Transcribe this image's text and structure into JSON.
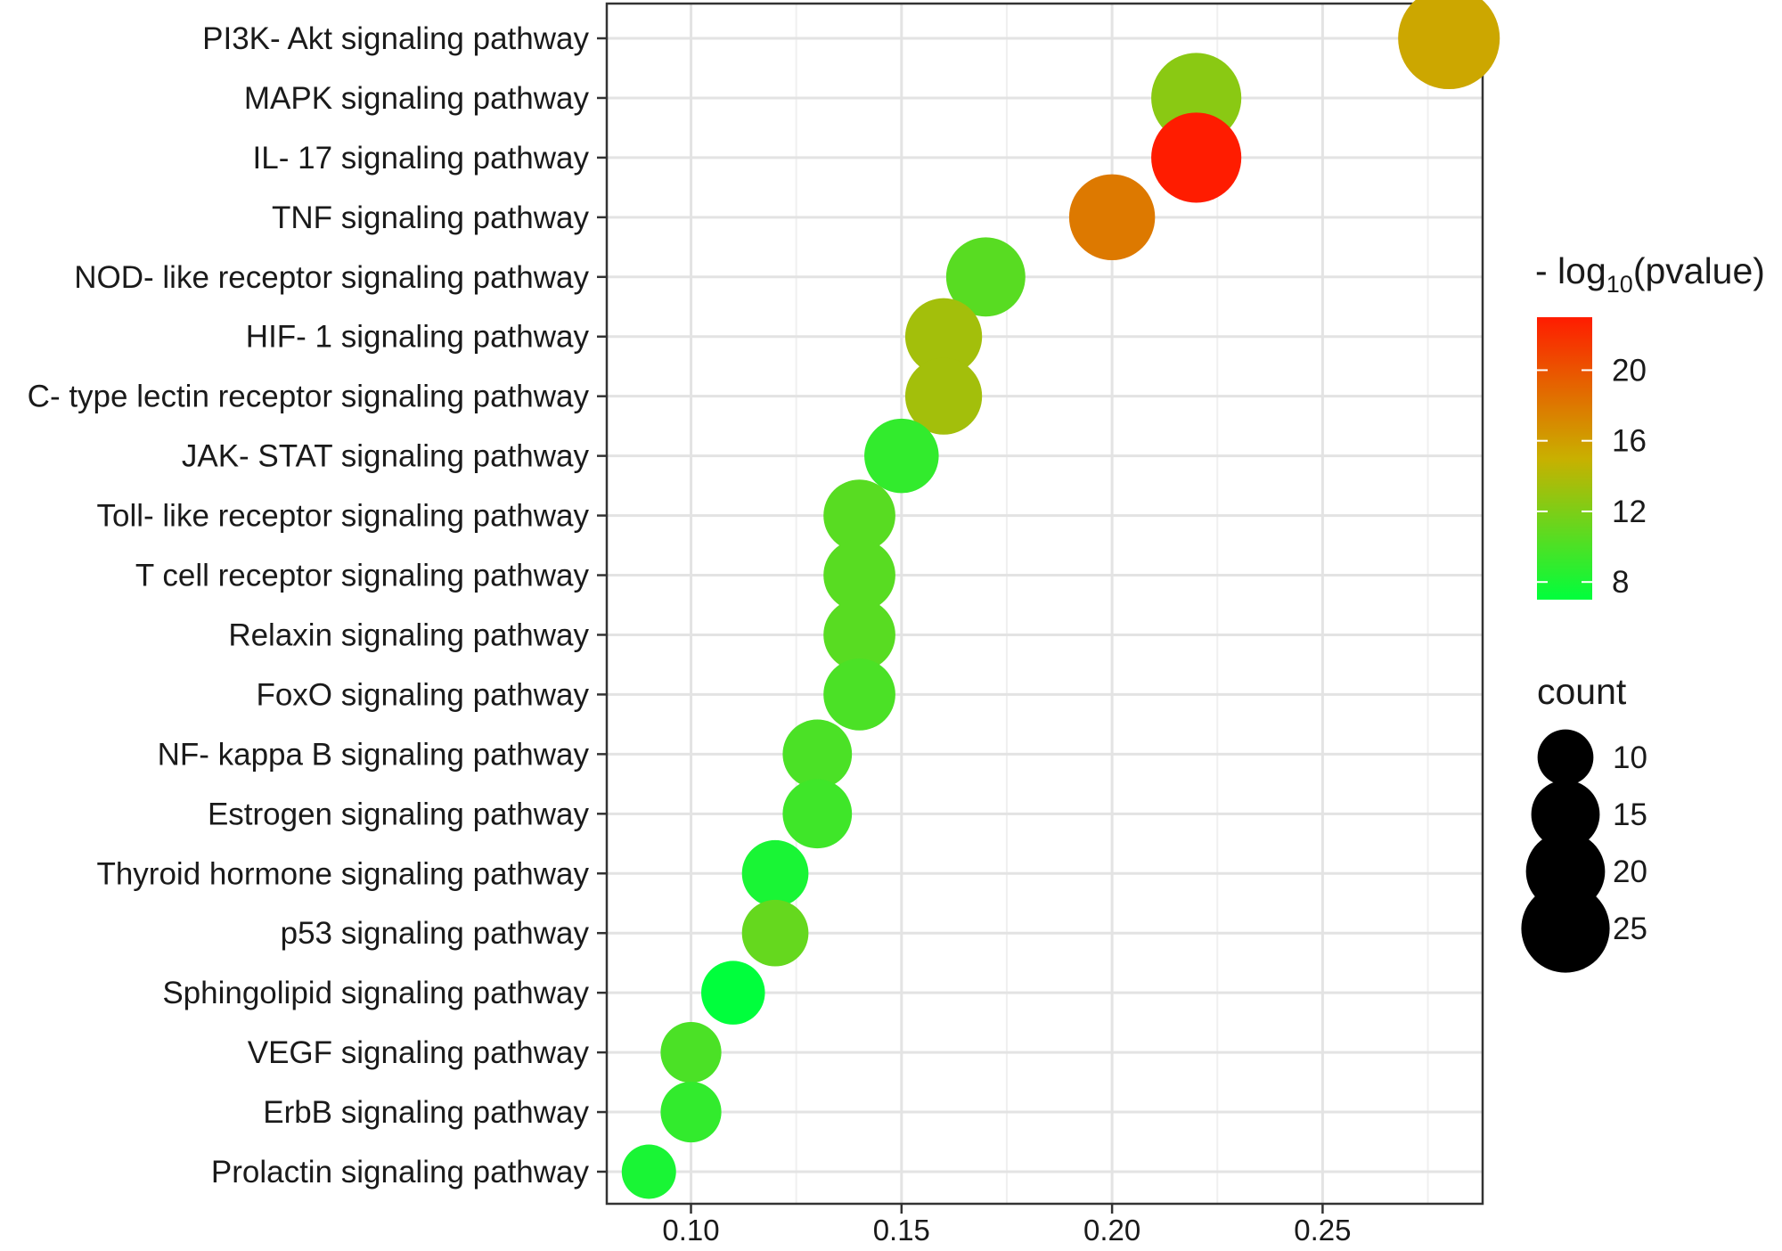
{
  "chart_data": {
    "type": "scatter",
    "title": "",
    "xlabel": "",
    "ylabel": "",
    "xlim": [
      0.08,
      0.288
    ],
    "x_ticks": [
      "0.10",
      "0.15",
      "0.20",
      "0.25"
    ],
    "x_tick_values": [
      0.1,
      0.15,
      0.2,
      0.25
    ],
    "grid": true,
    "legend_position": "right",
    "color_legend": {
      "title_prefix": "- log",
      "title_sub": "10",
      "title_suffix": "(pvalue)",
      "min": 7,
      "max": 23,
      "ticks": [
        "8",
        "12",
        "16",
        "20"
      ],
      "tick_values": [
        8,
        12,
        16,
        20
      ],
      "low_color": "#00ff3c",
      "mid_color": "#c9b000",
      "high_color": "#ff1c00"
    },
    "size_legend": {
      "title": "count",
      "ticks": [
        "10",
        "15",
        "20",
        "25"
      ],
      "tick_values": [
        10,
        15,
        20,
        25
      ]
    },
    "points": [
      {
        "pathway": "PI3K- Akt signaling pathway",
        "gene_ratio": 0.28,
        "count": 28,
        "neg_log10_pvalue": 15.5
      },
      {
        "pathway": "MAPK signaling pathway",
        "gene_ratio": 0.22,
        "count": 22,
        "neg_log10_pvalue": 12.5
      },
      {
        "pathway": "IL- 17 signaling pathway",
        "gene_ratio": 0.22,
        "count": 22,
        "neg_log10_pvalue": 23.0
      },
      {
        "pathway": "TNF signaling pathway",
        "gene_ratio": 0.2,
        "count": 20,
        "neg_log10_pvalue": 18.0
      },
      {
        "pathway": "NOD- like receptor signaling pathway",
        "gene_ratio": 0.17,
        "count": 17,
        "neg_log10_pvalue": 10.5
      },
      {
        "pathway": "HIF- 1 signaling pathway",
        "gene_ratio": 0.16,
        "count": 16,
        "neg_log10_pvalue": 13.5
      },
      {
        "pathway": "C- type lectin receptor signaling pathway",
        "gene_ratio": 0.16,
        "count": 16,
        "neg_log10_pvalue": 13.5
      },
      {
        "pathway": "JAK- STAT signaling pathway",
        "gene_ratio": 0.15,
        "count": 15,
        "neg_log10_pvalue": 9.0
      },
      {
        "pathway": "Toll- like receptor signaling pathway",
        "gene_ratio": 0.14,
        "count": 14,
        "neg_log10_pvalue": 10.5
      },
      {
        "pathway": "T cell receptor signaling pathway",
        "gene_ratio": 0.14,
        "count": 14,
        "neg_log10_pvalue": 10.5
      },
      {
        "pathway": "Relaxin signaling pathway",
        "gene_ratio": 0.14,
        "count": 14,
        "neg_log10_pvalue": 10.5
      },
      {
        "pathway": "FoxO signaling pathway",
        "gene_ratio": 0.14,
        "count": 14,
        "neg_log10_pvalue": 10.0
      },
      {
        "pathway": "NF- kappa B signaling pathway",
        "gene_ratio": 0.13,
        "count": 13,
        "neg_log10_pvalue": 10.0
      },
      {
        "pathway": "Estrogen signaling pathway",
        "gene_ratio": 0.13,
        "count": 13,
        "neg_log10_pvalue": 9.5
      },
      {
        "pathway": "Thyroid hormone signaling pathway",
        "gene_ratio": 0.12,
        "count": 12,
        "neg_log10_pvalue": 8.0
      },
      {
        "pathway": "p53 signaling pathway",
        "gene_ratio": 0.12,
        "count": 12,
        "neg_log10_pvalue": 11.0
      },
      {
        "pathway": "Sphingolipid signaling pathway",
        "gene_ratio": 0.11,
        "count": 11,
        "neg_log10_pvalue": 7.0
      },
      {
        "pathway": "VEGF signaling pathway",
        "gene_ratio": 0.1,
        "count": 10,
        "neg_log10_pvalue": 10.0
      },
      {
        "pathway": "ErbB signaling pathway",
        "gene_ratio": 0.1,
        "count": 10,
        "neg_log10_pvalue": 9.0
      },
      {
        "pathway": "Prolactin signaling pathway",
        "gene_ratio": 0.09,
        "count": 8,
        "neg_log10_pvalue": 8.0
      }
    ]
  }
}
